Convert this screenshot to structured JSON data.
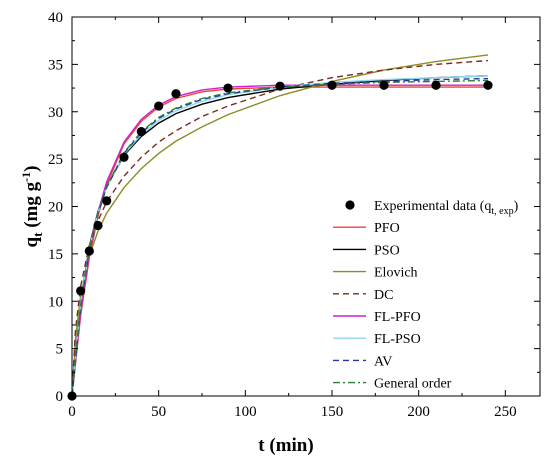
{
  "chart_data": {
    "type": "scatter",
    "title": "",
    "xlabel": "t (min)",
    "ylabel": "q",
    "ylabel_subscript": "t",
    "ylabel_units": " (mg g",
    "ylabel_units_sup": "-1",
    "ylabel_close": ")",
    "xlim": [
      0,
      270
    ],
    "ylim": [
      0,
      40
    ],
    "x_ticks": [
      0,
      50,
      100,
      150,
      200,
      250
    ],
    "y_ticks": [
      0,
      5,
      10,
      15,
      20,
      25,
      30,
      35,
      40
    ],
    "grid": false,
    "legend_position": "right",
    "experimental": {
      "name": "Experimental data (q",
      "name_sub": "t, exp",
      "name_close": ")",
      "color": "#000000",
      "x": [
        0,
        5,
        10,
        15,
        20,
        30,
        40,
        50,
        60,
        90,
        120,
        150,
        180,
        210,
        240
      ],
      "y": [
        0,
        11.1,
        15.3,
        18.0,
        20.6,
        25.2,
        27.9,
        30.6,
        31.9,
        32.5,
        32.7,
        32.8,
        32.8,
        32.8,
        32.8
      ]
    },
    "series": [
      {
        "name": "PFO",
        "color": "#e8453c",
        "dash": "solid",
        "x": [
          0,
          5,
          10,
          15,
          20,
          30,
          40,
          50,
          60,
          75,
          90,
          120,
          150,
          180,
          210,
          240
        ],
        "y": [
          0,
          8.5,
          14.6,
          19.0,
          22.3,
          26.6,
          29.0,
          30.5,
          31.4,
          32.1,
          32.4,
          32.6,
          32.6,
          32.6,
          32.6,
          32.6
        ]
      },
      {
        "name": "PSO",
        "color": "#000000",
        "dash": "solid",
        "x": [
          0,
          5,
          10,
          15,
          20,
          30,
          40,
          50,
          60,
          75,
          90,
          120,
          150,
          180,
          210,
          240
        ],
        "y": [
          0,
          10.0,
          15.8,
          19.5,
          22.1,
          25.4,
          27.4,
          28.8,
          29.8,
          30.8,
          31.5,
          32.4,
          32.9,
          33.3,
          33.6,
          33.8
        ]
      },
      {
        "name": "Elovich",
        "color": "#8c8c24",
        "dash": "solid",
        "x": [
          0,
          2,
          5,
          10,
          15,
          20,
          30,
          40,
          50,
          60,
          75,
          90,
          120,
          150,
          180,
          210,
          240
        ],
        "y": [
          0,
          6.0,
          10.6,
          14.8,
          17.4,
          19.3,
          22.0,
          24.0,
          25.6,
          26.9,
          28.4,
          29.7,
          31.7,
          33.2,
          34.4,
          35.3,
          36.0
        ]
      },
      {
        "name": "DC",
        "color": "#7a2a1e",
        "dash": "dashed",
        "x": [
          0,
          2,
          5,
          10,
          15,
          20,
          30,
          40,
          50,
          60,
          75,
          90,
          120,
          150,
          180,
          210,
          240
        ],
        "y": [
          0,
          7.0,
          11.6,
          15.9,
          18.5,
          20.5,
          23.2,
          25.2,
          26.8,
          28.0,
          29.5,
          30.6,
          32.4,
          33.6,
          34.4,
          35.0,
          35.4
        ]
      },
      {
        "name": "FL-PFO",
        "color": "#cc22cc",
        "dash": "solid",
        "x": [
          0,
          5,
          10,
          15,
          20,
          30,
          40,
          50,
          60,
          75,
          90,
          120,
          150,
          180,
          210,
          240
        ],
        "y": [
          0,
          8.9,
          15.0,
          19.4,
          22.6,
          26.8,
          29.2,
          30.7,
          31.6,
          32.3,
          32.6,
          32.8,
          32.8,
          32.8,
          32.8,
          32.8
        ]
      },
      {
        "name": "FL-PSO",
        "color": "#8fd8f0",
        "dash": "solid",
        "x": [
          0,
          5,
          10,
          15,
          20,
          30,
          40,
          50,
          60,
          75,
          90,
          120,
          150,
          180,
          210,
          240
        ],
        "y": [
          0,
          9.8,
          15.6,
          19.4,
          22.0,
          25.5,
          27.6,
          29.1,
          30.1,
          31.1,
          31.8,
          32.6,
          33.1,
          33.4,
          33.6,
          33.8
        ]
      },
      {
        "name": "AV",
        "color": "#1f3a9e",
        "dash": "dashed",
        "x": [
          0,
          5,
          10,
          15,
          20,
          30,
          40,
          50,
          60,
          75,
          90,
          120,
          150,
          180,
          210,
          240
        ],
        "y": [
          0,
          9.5,
          15.4,
          19.3,
          22.0,
          25.6,
          27.8,
          29.3,
          30.3,
          31.3,
          31.9,
          32.6,
          33.0,
          33.2,
          33.4,
          33.5
        ]
      },
      {
        "name": "General order",
        "color": "#2e7d32",
        "dash": "dashdot",
        "x": [
          0,
          5,
          10,
          15,
          20,
          30,
          40,
          50,
          60,
          75,
          90,
          120,
          150,
          180,
          210,
          240
        ],
        "y": [
          0,
          9.6,
          15.5,
          19.4,
          22.1,
          25.7,
          27.9,
          29.4,
          30.4,
          31.4,
          32.0,
          32.6,
          32.9,
          33.1,
          33.2,
          33.3
        ]
      }
    ]
  }
}
